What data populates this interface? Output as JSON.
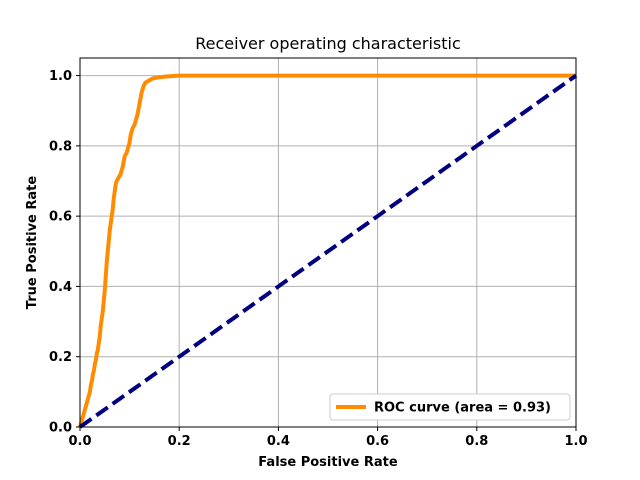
{
  "chart_data": {
    "type": "line",
    "title": "Receiver operating characteristic",
    "xlabel": "False Positive Rate",
    "ylabel": "True Positive Rate",
    "xlim": [
      0.0,
      1.0
    ],
    "ylim": [
      0.0,
      1.05
    ],
    "x_ticks": [
      0.0,
      0.2,
      0.4,
      0.6,
      0.8,
      1.0
    ],
    "x_tick_labels": [
      "0.0",
      "0.2",
      "0.4",
      "0.6",
      "0.8",
      "1.0"
    ],
    "y_ticks": [
      0.0,
      0.2,
      0.4,
      0.6,
      0.8,
      1.0
    ],
    "y_tick_labels": [
      "0.0",
      "0.2",
      "0.4",
      "0.6",
      "0.8",
      "1.0"
    ],
    "grid": true,
    "legend_position": "lower-right",
    "series": [
      {
        "name": "ROC curve (area = 0.93)",
        "color": "#ff8c00",
        "line_style": "solid",
        "x": [
          0.0,
          0.004,
          0.008,
          0.012,
          0.016,
          0.018,
          0.02,
          0.022,
          0.024,
          0.026,
          0.028,
          0.03,
          0.032,
          0.034,
          0.036,
          0.038,
          0.04,
          0.042,
          0.044,
          0.046,
          0.048,
          0.05,
          0.052,
          0.054,
          0.056,
          0.058,
          0.06,
          0.062,
          0.064,
          0.066,
          0.068,
          0.07,
          0.072,
          0.074,
          0.078,
          0.082,
          0.086,
          0.09,
          0.094,
          0.098,
          0.1,
          0.102,
          0.106,
          0.11,
          0.112,
          0.116,
          0.12,
          0.124,
          0.128,
          0.132,
          0.138,
          0.144,
          0.15,
          0.16,
          0.17,
          0.18,
          0.2,
          0.22,
          0.25,
          0.3,
          0.4,
          0.5,
          0.6,
          0.7,
          0.8,
          0.9,
          1.0
        ],
        "y": [
          0.0,
          0.02,
          0.04,
          0.06,
          0.08,
          0.09,
          0.1,
          0.12,
          0.13,
          0.15,
          0.16,
          0.18,
          0.19,
          0.21,
          0.22,
          0.24,
          0.26,
          0.29,
          0.31,
          0.33,
          0.36,
          0.39,
          0.43,
          0.47,
          0.5,
          0.53,
          0.56,
          0.58,
          0.6,
          0.62,
          0.65,
          0.67,
          0.69,
          0.7,
          0.71,
          0.72,
          0.74,
          0.77,
          0.78,
          0.8,
          0.81,
          0.83,
          0.85,
          0.86,
          0.87,
          0.89,
          0.92,
          0.95,
          0.97,
          0.98,
          0.985,
          0.99,
          0.993,
          0.995,
          0.997,
          0.998,
          1.0,
          1.0,
          1.0,
          1.0,
          1.0,
          1.0,
          1.0,
          1.0,
          1.0,
          1.0,
          1.0
        ]
      },
      {
        "name": "",
        "color": "#000080",
        "line_style": "dashed",
        "x": [
          0.0,
          1.0
        ],
        "y": [
          0.0,
          1.0
        ]
      }
    ]
  }
}
